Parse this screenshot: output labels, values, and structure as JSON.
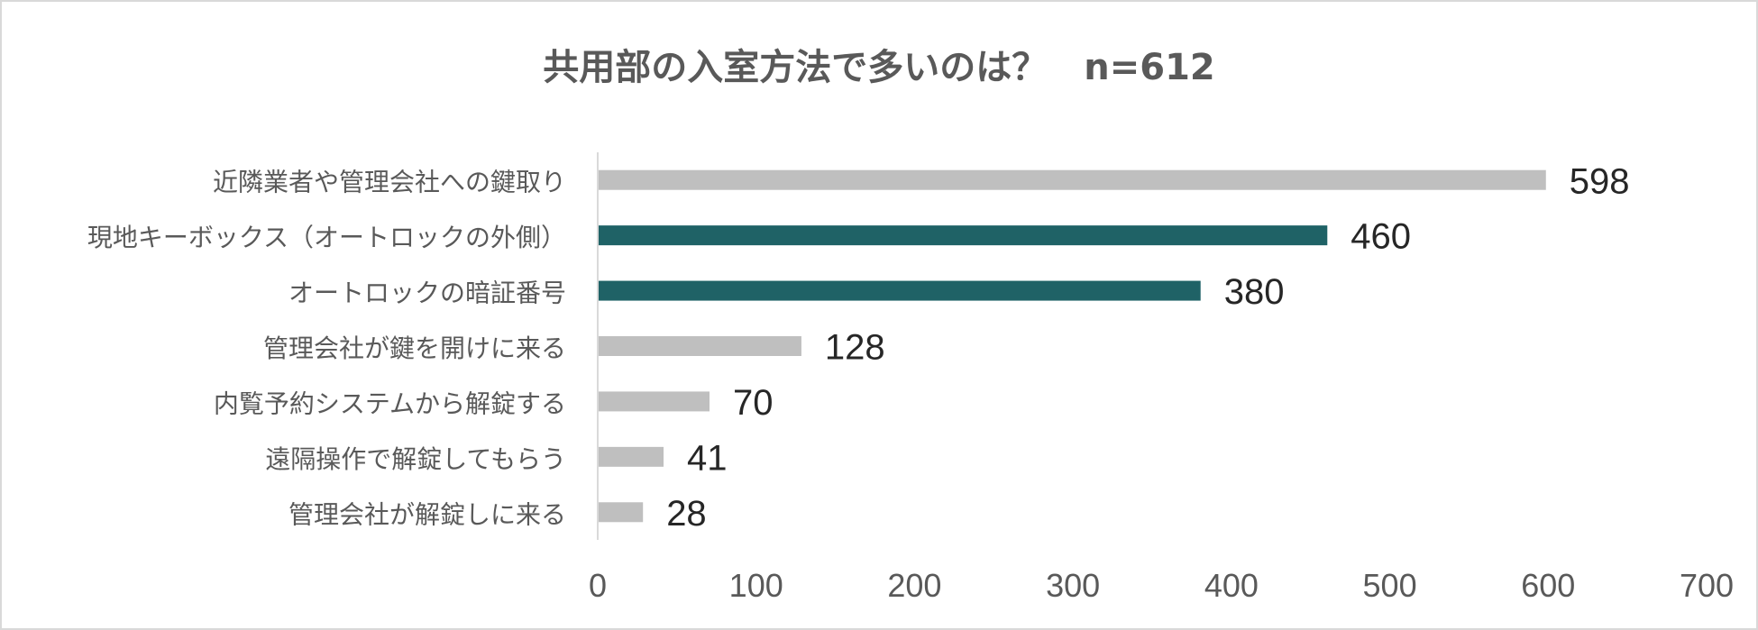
{
  "chart_data": {
    "type": "bar",
    "orientation": "horizontal",
    "title": "共用部の入室方法で多いのは？　n=612",
    "categories": [
      "近隣業者や管理会社への鍵取り",
      "現地キーボックス（オートロックの外側）",
      "オートロックの暗証番号",
      "管理会社が鍵を開けに来る",
      "内覧予約システムから解錠する",
      "遠隔操作で解錠してもらう",
      "管理会社が解錠しに来る"
    ],
    "values": [
      598,
      460,
      380,
      128,
      70,
      41,
      28
    ],
    "highlight": [
      false,
      true,
      true,
      false,
      false,
      false,
      false
    ],
    "xlim": [
      0,
      700
    ],
    "xticks": [
      "0",
      "100",
      "200",
      "300",
      "400",
      "500",
      "600",
      "700"
    ],
    "grid": false,
    "legend": "none",
    "colors": {
      "bar": "#bfbfbf",
      "highlight": "#1f6266",
      "axis": "#d9d9d9"
    }
  }
}
